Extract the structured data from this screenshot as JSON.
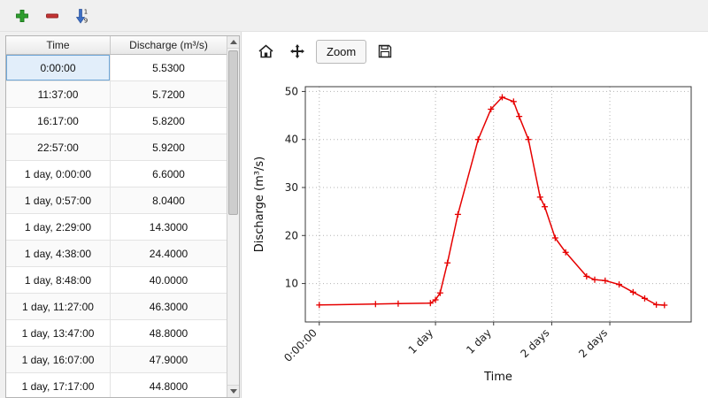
{
  "window": {
    "background": "#f0f0f0",
    "panel_background": "#ffffff"
  },
  "main_toolbar": {
    "buttons": [
      {
        "name": "add-row",
        "icon": "plus-icon",
        "color": "#2f9e2f"
      },
      {
        "name": "remove-row",
        "icon": "minus-icon",
        "color": "#c43434"
      },
      {
        "name": "sort-rows",
        "icon": "sort-numeric-down-icon",
        "digits": [
          "1",
          "9"
        ],
        "arrow_color": "#3d6fc4"
      }
    ]
  },
  "table": {
    "columns": [
      "Time",
      "Discharge (m³/s)"
    ],
    "rows": [
      [
        "0:00:00",
        "5.5300"
      ],
      [
        "11:37:00",
        "5.7200"
      ],
      [
        "16:17:00",
        "5.8200"
      ],
      [
        "22:57:00",
        "5.9200"
      ],
      [
        "1 day, 0:00:00",
        "6.6000"
      ],
      [
        "1 day, 0:57:00",
        "8.0400"
      ],
      [
        "1 day, 2:29:00",
        "14.3000"
      ],
      [
        "1 day, 4:38:00",
        "24.4000"
      ],
      [
        "1 day, 8:48:00",
        "40.0000"
      ],
      [
        "1 day, 11:27:00",
        "46.3000"
      ],
      [
        "1 day, 13:47:00",
        "48.8000"
      ],
      [
        "1 day, 16:07:00",
        "47.9000"
      ],
      [
        "1 day, 17:17:00",
        "44.8000"
      ]
    ],
    "selected": {
      "row": 0,
      "col": 0
    }
  },
  "chart_toolbar": {
    "icons": [
      "home-icon",
      "pan-icon",
      "save-icon"
    ],
    "zoom_label": "Zoom"
  },
  "chart_data": {
    "type": "line",
    "title": "",
    "xlabel": "Time",
    "ylabel": "Discharge (m³/s)",
    "line_color": "#e60000",
    "marker": "+",
    "grid": true,
    "legend": "none",
    "xlim_days": [
      -0.12,
      3.2
    ],
    "ylim": [
      2,
      51
    ],
    "yticks": [
      10,
      20,
      30,
      40,
      50
    ],
    "xticks": [
      {
        "pos_days": 0.0,
        "label": "0:00:00"
      },
      {
        "pos_days": 1.0,
        "label": "1 day"
      },
      {
        "pos_days": 1.5,
        "label": "1 day"
      },
      {
        "pos_days": 2.0,
        "label": "2 days"
      },
      {
        "pos_days": 2.5,
        "label": "2 days"
      }
    ],
    "points": [
      {
        "t_days": 0.0,
        "q": 5.53
      },
      {
        "t_days": 0.484,
        "q": 5.72
      },
      {
        "t_days": 0.679,
        "q": 5.82
      },
      {
        "t_days": 0.956,
        "q": 5.92
      },
      {
        "t_days": 1.0,
        "q": 6.6
      },
      {
        "t_days": 1.04,
        "q": 8.04
      },
      {
        "t_days": 1.103,
        "q": 14.3
      },
      {
        "t_days": 1.193,
        "q": 24.4
      },
      {
        "t_days": 1.367,
        "q": 40.0
      },
      {
        "t_days": 1.477,
        "q": 46.3
      },
      {
        "t_days": 1.574,
        "q": 48.8
      },
      {
        "t_days": 1.672,
        "q": 47.9
      },
      {
        "t_days": 1.72,
        "q": 44.8
      },
      {
        "t_days": 1.8,
        "q": 40.0
      },
      {
        "t_days": 1.9,
        "q": 28.0
      },
      {
        "t_days": 1.94,
        "q": 26.0
      },
      {
        "t_days": 2.03,
        "q": 19.5
      },
      {
        "t_days": 2.12,
        "q": 16.5
      },
      {
        "t_days": 2.3,
        "q": 11.5
      },
      {
        "t_days": 2.37,
        "q": 10.8
      },
      {
        "t_days": 2.46,
        "q": 10.6
      },
      {
        "t_days": 2.58,
        "q": 9.8
      },
      {
        "t_days": 2.7,
        "q": 8.2
      },
      {
        "t_days": 2.8,
        "q": 6.9
      },
      {
        "t_days": 2.9,
        "q": 5.6
      },
      {
        "t_days": 2.97,
        "q": 5.5
      }
    ]
  }
}
